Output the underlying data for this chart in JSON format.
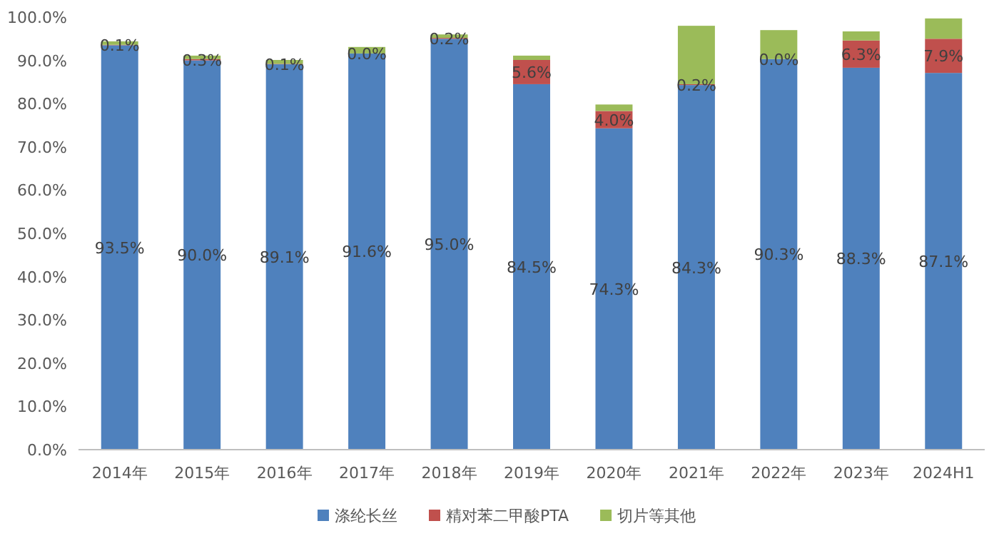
{
  "chart_data": {
    "type": "bar",
    "stacked": true,
    "legend": "bottom",
    "grid": false,
    "categories": [
      "2014年",
      "2015年",
      "2016年",
      "2017年",
      "2018年",
      "2019年",
      "2020年",
      "2021年",
      "2022年",
      "2023年",
      "2024H1"
    ],
    "series": [
      {
        "name": "涤纶长丝",
        "color": "#4f81bd",
        "values": [
          93.5,
          90.0,
          89.1,
          91.6,
          95.0,
          84.5,
          74.3,
          84.3,
          90.3,
          88.3,
          87.1
        ],
        "value_labels": [
          "93.5%",
          "90.0%",
          "89.1%",
          "91.6%",
          "95.0%",
          "84.5%",
          "74.3%",
          "84.3%",
          "90.3%",
          "88.3%",
          "87.1%"
        ]
      },
      {
        "name": "精对苯二甲酸PTA",
        "color": "#c0504d",
        "values": [
          0.1,
          0.3,
          0.1,
          0.0,
          0.2,
          5.6,
          4.0,
          0.2,
          0.0,
          6.3,
          7.9
        ],
        "value_labels": [
          "0.1%",
          "0.3%",
          "0.1%",
          "0.0%",
          "0.2%",
          "5.6%",
          "4.0%",
          "0.2%",
          "0.0%",
          "6.3%",
          "7.9%"
        ]
      },
      {
        "name": "切片等其他",
        "color": "#9bbb59",
        "values": [
          0.8,
          0.8,
          0.9,
          1.5,
          0.8,
          1.0,
          1.5,
          13.5,
          6.7,
          2.1,
          4.7
        ]
      }
    ],
    "ylim": [
      0,
      100
    ],
    "yticks": [
      {
        "value": 0,
        "label": "0.0%"
      },
      {
        "value": 10,
        "label": "10.0%"
      },
      {
        "value": 20,
        "label": "20.0%"
      },
      {
        "value": 30,
        "label": "30.0%"
      },
      {
        "value": 40,
        "label": "40.0%"
      },
      {
        "value": 50,
        "label": "50.0%"
      },
      {
        "value": 60,
        "label": "60.0%"
      },
      {
        "value": 70,
        "label": "70.0%"
      },
      {
        "value": 80,
        "label": "80.0%"
      },
      {
        "value": 90,
        "label": "90.0%"
      },
      {
        "value": 100,
        "label": "100.0%"
      }
    ]
  }
}
